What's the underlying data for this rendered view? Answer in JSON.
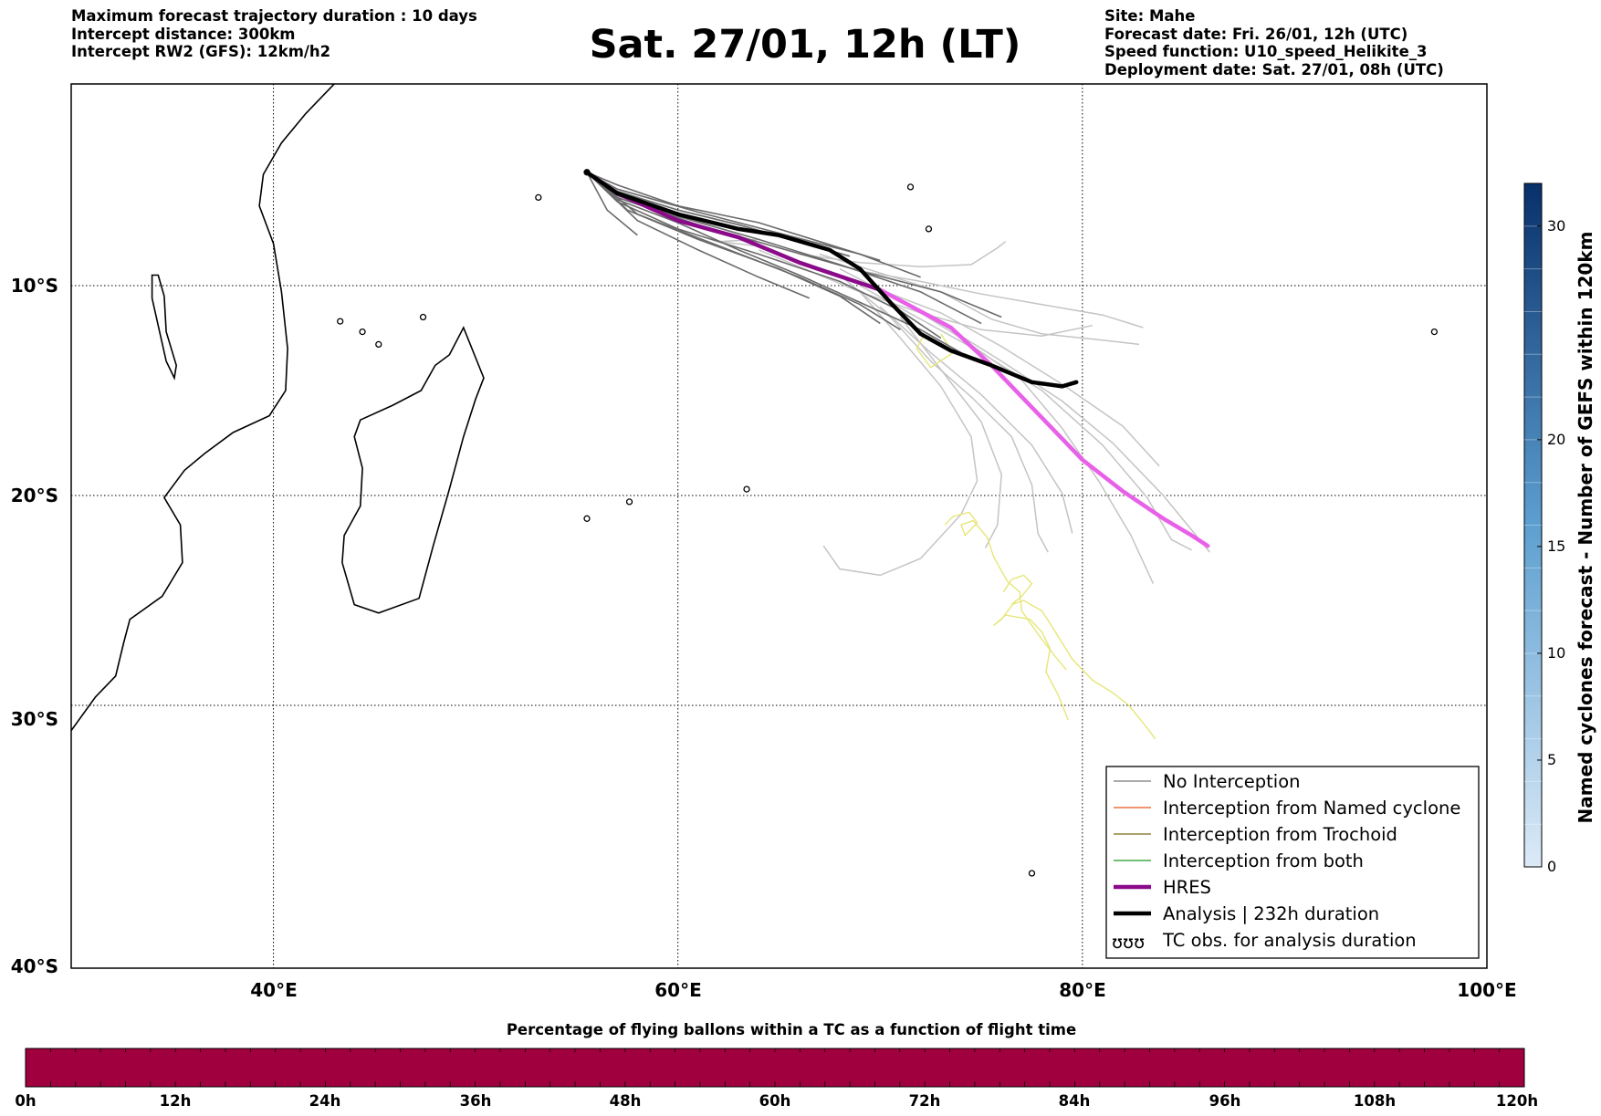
{
  "header": {
    "left_lines": [
      "Maximum forecast trajectory duration : 10 days",
      "Intercept distance: 300km",
      "Intercept RW2 (GFS):  12km/h2"
    ],
    "title": "Sat. 27/01, 12h (LT)",
    "right_lines": [
      "Site: Mahe",
      "Forecast date: Fri. 26/01, 12h (UTC)",
      "Speed function: U10_speed_Helikite_3",
      "Deployment date: Sat. 27/01, 08h (UTC)"
    ]
  },
  "map": {
    "lon_ticks": [
      "40°E",
      "60°E",
      "80°E",
      "100°E"
    ],
    "lat_ticks": [
      "10°S",
      "20°S",
      "30°S",
      "40°S"
    ],
    "projection": "equirectangular",
    "extent": {
      "lon_min": 30,
      "lon_max": 100,
      "lat_min": -40,
      "lat_max": -0.5
    },
    "gridlines": true
  },
  "legend": {
    "items": [
      {
        "label": "No Interception",
        "color": "#777777"
      },
      {
        "label": "Interception from Named cyclone",
        "color": "#e8531e"
      },
      {
        "label": "Interception from Trochoid",
        "color": "#7a6a10"
      },
      {
        "label": "Interception from both",
        "color": "#229922"
      },
      {
        "label": "HRES",
        "color": "#8a0a8a"
      },
      {
        "label": "Analysis | 232h duration",
        "color": "#000000"
      },
      {
        "label": "TC obs. for analysis duration",
        "symbol": "ʊʊʊ"
      }
    ]
  },
  "colorbar_right": {
    "label": "Named cyclones forecast - Number of GEFS within 120km",
    "ticks": [
      "0",
      "5",
      "10",
      "15",
      "20",
      "30"
    ],
    "range": [
      0,
      32
    ],
    "colors": [
      "#dceaf7",
      "#08306b"
    ]
  },
  "colorbar_bottom": {
    "title": "Percentage of flying ballons within a TC as a function of flight time",
    "ticks": [
      "0h",
      "12h",
      "24h",
      "36h",
      "48h",
      "60h",
      "72h",
      "84h",
      "96h",
      "108h",
      "120h"
    ],
    "fill_color": "#a0003e"
  },
  "tracks": {
    "origin": {
      "lon": 55.5,
      "lat": -4.6
    },
    "hres": {
      "color": "#e860e8",
      "dark_color": "#8a0a8a",
      "points": [
        [
          55.5,
          -4.6
        ],
        [
          57,
          -5.6
        ],
        [
          60,
          -6.9
        ],
        [
          63,
          -7.7
        ],
        [
          66,
          -8.9
        ],
        [
          70,
          -10.2
        ],
        [
          73.5,
          -12
        ],
        [
          75.5,
          -13.8
        ],
        [
          77.5,
          -15.8
        ],
        [
          80,
          -18.3
        ],
        [
          82,
          -19.8
        ],
        [
          84,
          -21.1
        ],
        [
          85.4,
          -21.9
        ],
        [
          86.2,
          -22.4
        ]
      ]
    },
    "analysis": {
      "color": "#000000",
      "points": [
        [
          55.5,
          -4.6
        ],
        [
          57,
          -5.6
        ],
        [
          60,
          -6.6
        ],
        [
          63,
          -7.3
        ],
        [
          65,
          -7.6
        ],
        [
          67.5,
          -8.3
        ],
        [
          69,
          -9.2
        ],
        [
          70.5,
          -10.8
        ],
        [
          72,
          -12.3
        ],
        [
          73.5,
          -13.1
        ],
        [
          75.5,
          -13.8
        ],
        [
          77.5,
          -14.6
        ],
        [
          79,
          -14.8
        ],
        [
          79.7,
          -14.6
        ]
      ]
    },
    "no_interception_dark": [
      [
        [
          55.5,
          -4.6
        ],
        [
          57,
          -5.7
        ],
        [
          60,
          -6.7
        ],
        [
          64,
          -7.8
        ],
        [
          68,
          -9.0
        ],
        [
          72,
          -10.3
        ],
        [
          75,
          -11.8
        ]
      ],
      [
        [
          55.5,
          -4.6
        ],
        [
          57,
          -6.0
        ],
        [
          60,
          -7.3
        ],
        [
          64,
          -8.5
        ],
        [
          68,
          -9.8
        ],
        [
          71,
          -11.2
        ],
        [
          73,
          -12.5
        ]
      ],
      [
        [
          55.5,
          -4.6
        ],
        [
          57.5,
          -6.4
        ],
        [
          61,
          -7.8
        ],
        [
          65,
          -9.2
        ],
        [
          68,
          -10.5
        ],
        [
          70,
          -11.8
        ]
      ],
      [
        [
          55.5,
          -4.6
        ],
        [
          57,
          -5.4
        ],
        [
          61,
          -6.5
        ],
        [
          65,
          -7.5
        ],
        [
          69,
          -8.5
        ],
        [
          72,
          -9.6
        ]
      ],
      [
        [
          55.5,
          -4.6
        ],
        [
          57,
          -5.2
        ],
        [
          60,
          -6.2
        ],
        [
          64,
          -7.0
        ],
        [
          67,
          -7.9
        ],
        [
          70,
          -8.8
        ]
      ],
      [
        [
          55.5,
          -4.6
        ],
        [
          56.5,
          -6.4
        ],
        [
          58,
          -7.6
        ]
      ],
      [
        [
          55.5,
          -4.6
        ],
        [
          58,
          -6.6
        ],
        [
          62,
          -8.1
        ],
        [
          66,
          -9.6
        ],
        [
          69,
          -10.9
        ],
        [
          71,
          -12.1
        ]
      ],
      [
        [
          55.5,
          -4.6
        ],
        [
          57,
          -5.8
        ],
        [
          61,
          -7.1
        ],
        [
          65,
          -8.2
        ],
        [
          69,
          -9.3
        ],
        [
          73,
          -10.3
        ],
        [
          76,
          -11.5
        ]
      ],
      [
        [
          55.5,
          -4.6
        ],
        [
          57,
          -5.5
        ],
        [
          60,
          -6.4
        ],
        [
          63,
          -7.1
        ],
        [
          66,
          -7.9
        ],
        [
          68.5,
          -8.6
        ]
      ],
      [
        [
          55.5,
          -4.6
        ],
        [
          58,
          -6.9
        ],
        [
          61,
          -8.3
        ],
        [
          64,
          -9.6
        ],
        [
          66.5,
          -10.6
        ]
      ],
      [
        [
          55.5,
          -4.6
        ],
        [
          57,
          -5.9
        ],
        [
          60,
          -7.0
        ],
        [
          63,
          -8.3
        ],
        [
          66,
          -9.5
        ],
        [
          69,
          -10.8
        ],
        [
          72,
          -12.1
        ],
        [
          74,
          -13.2
        ]
      ]
    ],
    "no_interception_light": [
      [
        [
          66,
          -8.4
        ],
        [
          69,
          -9.3
        ],
        [
          72,
          -9.8
        ],
        [
          75,
          -10.4
        ],
        [
          78,
          -10.9
        ],
        [
          81,
          -11.4
        ],
        [
          83,
          -12.0
        ]
      ],
      [
        [
          68,
          -9.2
        ],
        [
          71,
          -10.7
        ],
        [
          74,
          -12.5
        ],
        [
          77,
          -14.5
        ],
        [
          79,
          -16.8
        ],
        [
          80.8,
          -19.3
        ],
        [
          82.4,
          -21.9
        ],
        [
          83.5,
          -24.2
        ]
      ],
      [
        [
          68,
          -9.5
        ],
        [
          70.5,
          -11.5
        ],
        [
          72.5,
          -13.6
        ],
        [
          74.5,
          -15.3
        ],
        [
          76.5,
          -17.2
        ],
        [
          77.5,
          -19.5
        ],
        [
          77.8,
          -21.8
        ],
        [
          78.3,
          -22.7
        ]
      ],
      [
        [
          69,
          -10
        ],
        [
          72,
          -11.6
        ],
        [
          75,
          -13.2
        ],
        [
          78,
          -15.0
        ],
        [
          81,
          -17.6
        ],
        [
          83.2,
          -20.1
        ],
        [
          84.4,
          -22.1
        ],
        [
          85.4,
          -22.6
        ]
      ],
      [
        [
          69,
          -10.3
        ],
        [
          71,
          -12.5
        ],
        [
          73,
          -14.8
        ],
        [
          74.5,
          -17.2
        ],
        [
          74.8,
          -19.3
        ],
        [
          74,
          -20.9
        ],
        [
          72,
          -23.0
        ],
        [
          70,
          -23.8
        ],
        [
          68,
          -23.5
        ],
        [
          67.2,
          -22.4
        ]
      ],
      [
        [
          70.3,
          -10.3
        ],
        [
          73,
          -11.8
        ],
        [
          76,
          -13.6
        ],
        [
          79,
          -15.5
        ],
        [
          81.5,
          -17.5
        ],
        [
          84,
          -20.0
        ],
        [
          86.3,
          -22.7
        ]
      ],
      [
        [
          66,
          -8.5
        ],
        [
          69,
          -8.9
        ],
        [
          72,
          -9.1
        ],
        [
          74.5,
          -9.0
        ],
        [
          75.8,
          -8.2
        ],
        [
          76.2,
          -7.9
        ]
      ],
      [
        [
          64,
          -8.3
        ],
        [
          66,
          -9.1
        ],
        [
          69,
          -10.3
        ],
        [
          72,
          -11.3
        ],
        [
          75,
          -12.1
        ],
        [
          78,
          -12.4
        ],
        [
          80.5,
          -11.9
        ]
      ],
      [
        [
          70,
          -11
        ],
        [
          72.5,
          -13.2
        ],
        [
          75,
          -15.2
        ],
        [
          77.5,
          -17.6
        ],
        [
          79,
          -19.9
        ],
        [
          79.5,
          -21.8
        ]
      ],
      [
        [
          71,
          -11.5
        ],
        [
          73,
          -14.0
        ],
        [
          75,
          -16.5
        ],
        [
          76,
          -19.0
        ],
        [
          75.8,
          -21.4
        ],
        [
          75.2,
          -22.5
        ]
      ],
      [
        [
          70,
          -10.2
        ],
        [
          73,
          -11.3
        ],
        [
          76,
          -12.9
        ],
        [
          79,
          -14.7
        ],
        [
          82,
          -16.7
        ],
        [
          83.8,
          -18.6
        ]
      ],
      [
        [
          64,
          -7.8
        ],
        [
          62,
          -7.9
        ],
        [
          63.8,
          -8.1
        ]
      ],
      [
        [
          67,
          -8.5
        ],
        [
          70,
          -9.4
        ],
        [
          73,
          -10.3
        ],
        [
          75.5,
          -11.6
        ],
        [
          78,
          -12.3
        ],
        [
          81,
          -12.6
        ],
        [
          82.8,
          -12.8
        ]
      ]
    ],
    "tc_obs": [
      [
        [
          73.2,
          -21.4
        ],
        [
          73.6,
          -21.0
        ],
        [
          74.4,
          -20.8
        ],
        [
          74.8,
          -21.3
        ],
        [
          74.2,
          -21.9
        ],
        [
          74.0,
          -21.4
        ],
        [
          74.6,
          -21.2
        ],
        [
          75.3,
          -22.0
        ],
        [
          75.6,
          -22.9
        ],
        [
          76.0,
          -23.6
        ],
        [
          76.3,
          -24.1
        ],
        [
          76.9,
          -24.6
        ],
        [
          77.0,
          -25.5
        ],
        [
          77.8,
          -26.6
        ],
        [
          78.6,
          -27.6
        ],
        [
          79.2,
          -28.3
        ]
      ],
      [
        [
          76.1,
          -24.6
        ],
        [
          76.5,
          -24.0
        ],
        [
          77.1,
          -23.8
        ],
        [
          77.5,
          -24.2
        ],
        [
          77.0,
          -24.8
        ],
        [
          76.5,
          -25.2
        ],
        [
          77.1,
          -25.0
        ],
        [
          78.0,
          -25.5
        ],
        [
          78.6,
          -26.4
        ],
        [
          79.5,
          -27.8
        ],
        [
          80.5,
          -28.8
        ],
        [
          81.5,
          -29.4
        ],
        [
          82.3,
          -30.0
        ],
        [
          82.8,
          -30.6
        ],
        [
          83.3,
          -31.2
        ],
        [
          83.6,
          -31.6
        ]
      ],
      [
        [
          76.7,
          -25.0
        ],
        [
          76.0,
          -25.9
        ],
        [
          75.6,
          -26.2
        ],
        [
          76.2,
          -25.7
        ],
        [
          77.4,
          -25.9
        ],
        [
          78.0,
          -26.5
        ],
        [
          78.4,
          -27.3
        ],
        [
          78.2,
          -28.4
        ],
        [
          78.8,
          -29.5
        ],
        [
          79.3,
          -30.7
        ]
      ],
      [
        [
          72.2,
          -12.3
        ],
        [
          71.8,
          -13.0
        ],
        [
          72.5,
          -13.9
        ],
        [
          73.6,
          -13.2
        ],
        [
          73.0,
          -12.3
        ]
      ]
    ]
  },
  "coastlines": {
    "africa": [
      [
        30,
        -31.2
      ],
      [
        31.2,
        -29.6
      ],
      [
        32.2,
        -28.6
      ],
      [
        32.6,
        -27.0
      ],
      [
        32.9,
        -25.9
      ],
      [
        34.5,
        -24.8
      ],
      [
        35.5,
        -23.2
      ],
      [
        35.4,
        -21.4
      ],
      [
        34.6,
        -20.1
      ],
      [
        35.6,
        -18.8
      ],
      [
        36.6,
        -18.0
      ],
      [
        38.0,
        -17.0
      ],
      [
        39.8,
        -16.2
      ],
      [
        40.6,
        -15.0
      ],
      [
        40.7,
        -13.0
      ],
      [
        40.4,
        -10.3
      ],
      [
        40.0,
        -8.0
      ],
      [
        39.3,
        -6.2
      ],
      [
        39.5,
        -4.7
      ],
      [
        40.4,
        -3.2
      ],
      [
        41.6,
        -1.8
      ],
      [
        43.0,
        -0.4
      ]
    ],
    "madagascar": [
      [
        44.0,
        -25.2
      ],
      [
        45.2,
        -25.6
      ],
      [
        47.2,
        -24.9
      ],
      [
        47.9,
        -22.4
      ],
      [
        48.7,
        -19.7
      ],
      [
        49.4,
        -17.2
      ],
      [
        50.0,
        -15.4
      ],
      [
        50.4,
        -14.4
      ],
      [
        49.4,
        -12.0
      ],
      [
        48.7,
        -13.3
      ],
      [
        48.0,
        -13.8
      ],
      [
        47.3,
        -15.0
      ],
      [
        45.9,
        -15.7
      ],
      [
        44.3,
        -16.4
      ],
      [
        44.0,
        -17.2
      ],
      [
        44.4,
        -18.7
      ],
      [
        44.3,
        -20.5
      ],
      [
        43.5,
        -21.9
      ],
      [
        43.4,
        -23.2
      ],
      [
        44.0,
        -25.2
      ]
    ],
    "lake": [
      [
        34.3,
        -9.5
      ],
      [
        34.6,
        -10.5
      ],
      [
        34.7,
        -12.2
      ],
      [
        35.2,
        -13.8
      ],
      [
        35.1,
        -14.4
      ],
      [
        34.7,
        -13.6
      ],
      [
        34.3,
        -11.9
      ],
      [
        34.0,
        -10.6
      ],
      [
        34.0,
        -9.5
      ]
    ],
    "islands": [
      [
        55.5,
        -4.6
      ],
      [
        57.6,
        -20.3
      ],
      [
        55.5,
        -21.1
      ],
      [
        63.4,
        -19.7
      ],
      [
        43.3,
        -11.7
      ],
      [
        44.4,
        -12.2
      ],
      [
        45.2,
        -12.8
      ],
      [
        47.4,
        -11.5
      ],
      [
        53.1,
        -5.8
      ],
      [
        72.4,
        -7.3
      ],
      [
        71.5,
        -5.3
      ],
      [
        77.5,
        -38.0
      ],
      [
        97.4,
        -12.2
      ]
    ]
  }
}
